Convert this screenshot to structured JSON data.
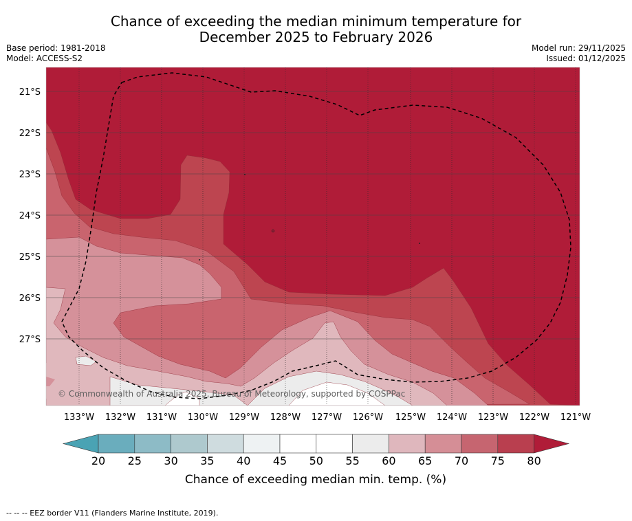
{
  "title": {
    "line1": "Chance of exceeding the median minimum temperature for",
    "line2": "December 2025 to February 2026"
  },
  "meta_left": {
    "base_period": "Base period: 1981-2018",
    "model": "Model: ACCESS-S2"
  },
  "meta_right": {
    "model_run": "Model run: 29/11/2025",
    "issued": "Issued: 01/12/2025"
  },
  "map": {
    "lat_labels": [
      "21°S",
      "22°S",
      "23°S",
      "24°S",
      "25°S",
      "26°S",
      "27°S"
    ],
    "lon_labels": [
      "133°W",
      "132°W",
      "131°W",
      "130°W",
      "129°W",
      "128°W",
      "127°W",
      "126°W",
      "125°W",
      "124°W",
      "123°W",
      "122°W",
      "121°W"
    ],
    "copyright": "© Commonwealth of Australia 2025, Bureau of Meteorology, supported by COSPPac"
  },
  "colorbar": {
    "ticks": [
      "20",
      "25",
      "30",
      "35",
      "40",
      "45",
      "50",
      "55",
      "60",
      "65",
      "70",
      "75",
      "80"
    ],
    "colors": [
      "#6aadbd",
      "#8dbbc6",
      "#aec9ce",
      "#cfdcdf",
      "#eef2f3",
      "#ffffff",
      "#ffffff",
      "#ececec",
      "#dfb7bd",
      "#d58e96",
      "#c66570",
      "#b93f4f"
    ],
    "low_color": "#4aa3b4",
    "high_color": "#b01c38",
    "label": "Chance of exceeding median min. temp. (%)"
  },
  "footer": "-- -- -- EEZ border V11 (Flanders Marine Institute, 2019)."
}
